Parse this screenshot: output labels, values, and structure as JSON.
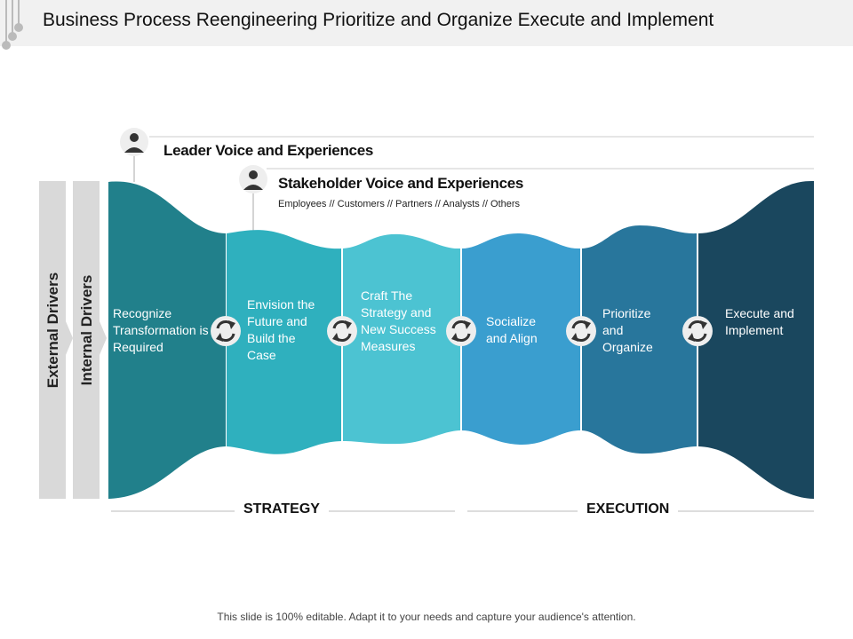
{
  "title": "Business Process Reengineering Prioritize and Organize Execute and Implement",
  "leader": "Leader Voice and Experiences",
  "stakeholder": {
    "title": "Stakeholder Voice and Experiences",
    "subtitle": "Employees // Customers // Partners // Analysts // Others"
  },
  "drivers": {
    "external": "External Drivers",
    "internal": "Internal Drivers"
  },
  "steps": [
    {
      "label": "Recognize Transformation is Required",
      "color": "#21808b"
    },
    {
      "label": "Envision the Future and Build the Case",
      "color": "#2fb0be"
    },
    {
      "label": "Craft The Strategy and New Success Measures",
      "color": "#4cc3d2"
    },
    {
      "label": "Socialize and Align",
      "color": "#3a9ecf"
    },
    {
      "label": "Prioritize and Organize",
      "color": "#28769c"
    },
    {
      "label": "Execute and Implement",
      "color": "#1a475e"
    }
  ],
  "phases": {
    "strategy": "STRATEGY",
    "execution": "EXECUTION"
  },
  "footer": "This slide is 100% editable. Adapt it to your needs and capture your audience's attention."
}
